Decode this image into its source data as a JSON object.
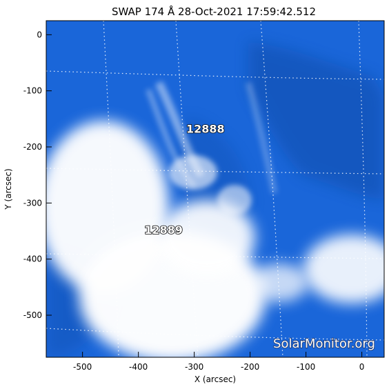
{
  "title": "SWAP 174 Å 28-Oct-2021 17:59:42.512",
  "x_axis": {
    "label": "X (arcsec)",
    "range": [
      -565,
      40
    ],
    "ticks": [
      -500,
      -400,
      -300,
      -200,
      -100,
      0
    ],
    "tick_labels": [
      "-500",
      "-400",
      "-300",
      "-200",
      "-100",
      "0"
    ]
  },
  "y_axis": {
    "label": "Y (arcsec)",
    "range": [
      -575,
      25
    ],
    "ticks": [
      0,
      -100,
      -200,
      -300,
      -400,
      -500
    ],
    "tick_labels": [
      "0",
      "-100",
      "-200",
      "-300",
      "-400",
      "-500"
    ]
  },
  "active_regions": [
    {
      "label": "12888",
      "x": -280,
      "y": -175
    },
    {
      "label": "12889",
      "x": -355,
      "y": -355
    }
  ],
  "watermark": "SolarMonitor.org",
  "colors": {
    "image_base": "#1a66d9",
    "image_dark": "#0d47a1",
    "image_bright": "#ffffff",
    "grid_lines": "#ffffff"
  }
}
